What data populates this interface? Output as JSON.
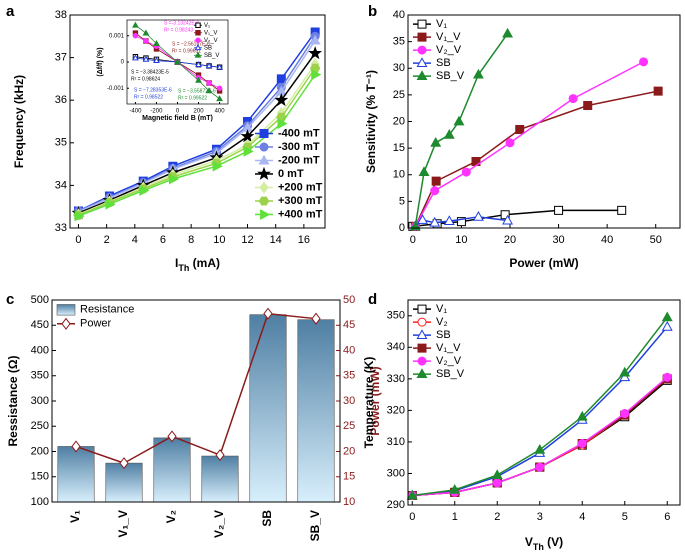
{
  "chart_data": [
    {
      "panel_label": "a",
      "type": "line",
      "x": [
        0,
        2.2,
        4.6,
        6.7,
        9.8,
        12,
        14.4,
        16.8
      ],
      "xlim": [
        -0.6,
        17.5
      ],
      "xticks": [
        0,
        2,
        4,
        6,
        8,
        10,
        12,
        14,
        16
      ],
      "ylim": [
        33,
        38
      ],
      "yticks": [
        33,
        34,
        35,
        36,
        37,
        38
      ],
      "xlabel": [
        {
          "text": "I"
        },
        {
          "text": "Th",
          "sub": true
        },
        {
          "text": " (mA)"
        }
      ],
      "ylabel": "Frequency (kHz)",
      "legend": "lower right",
      "series": [
        {
          "name": "-400 mT",
          "color": "#1f3fe0",
          "marker": "square",
          "values": [
            33.4,
            33.75,
            34.1,
            34.45,
            34.85,
            35.5,
            36.5,
            37.6
          ]
        },
        {
          "name": "-300 mT",
          "color": "#6b80e2",
          "marker": "circle",
          "values": [
            33.4,
            33.72,
            34.07,
            34.4,
            34.8,
            35.4,
            36.3,
            37.5
          ]
        },
        {
          "name": "-200 mT",
          "color": "#aab7f0",
          "marker": "triangle",
          "values": [
            33.38,
            33.7,
            34.05,
            34.38,
            34.75,
            35.35,
            36.2,
            37.4
          ]
        },
        {
          "name": "0 mT",
          "color": "#000000",
          "marker": "star",
          "values": [
            33.35,
            33.65,
            34.0,
            34.3,
            34.65,
            35.15,
            36.0,
            37.1
          ]
        },
        {
          "name": "+200 mT",
          "color": "#d4eea0",
          "marker": "diamond",
          "values": [
            33.32,
            33.62,
            33.95,
            34.25,
            34.58,
            34.95,
            35.7,
            36.85
          ]
        },
        {
          "name": "+300 mT",
          "color": "#9cd24a",
          "marker": "hexagon",
          "values": [
            33.3,
            33.6,
            33.92,
            34.2,
            34.52,
            34.9,
            35.6,
            36.75
          ]
        },
        {
          "name": "+400 mT",
          "color": "#5fe03a",
          "marker": "triangle-right",
          "values": [
            33.28,
            33.56,
            33.88,
            34.15,
            34.45,
            34.8,
            35.45,
            36.6
          ]
        }
      ]
    },
    {
      "type": "line",
      "x": [
        -400,
        -300,
        -200,
        0,
        200,
        300,
        400
      ],
      "xlim": [
        -480,
        480
      ],
      "xticks": [
        -400,
        -200,
        0,
        200,
        400
      ],
      "ylim": [
        -0.0016,
        0.0016
      ],
      "yticks": [
        -0.001,
        0,
        0.001
      ],
      "xlabel": "Magnetic field B (mT)",
      "ylabel": "(Δf/f) (%)",
      "legend": "upper right",
      "series": [
        {
          "name": "V₁",
          "color": "#000000",
          "marker": "square",
          "open": true,
          "values": [
            0.0002,
            0.00015,
            0.0001,
            0,
            -0.0001,
            -0.00015,
            -0.0002
          ]
        },
        {
          "name": "V₁_V",
          "color": "#8b1a1a",
          "marker": "square",
          "values": [
            0.0011,
            0.0008,
            0.0005,
            0,
            -0.0005,
            -0.0008,
            -0.0011
          ]
        },
        {
          "name": "V₂_V",
          "color": "#ff33ff",
          "marker": "circle",
          "values": [
            0.001,
            0.0008,
            0.0006,
            0,
            -0.0006,
            -0.0008,
            -0.001
          ]
        },
        {
          "name": "SB",
          "color": "#1f3fe0",
          "marker": "triangle",
          "open": true,
          "values": [
            0.00015,
            0.0001,
            5e-05,
            0,
            -0.0001,
            -0.00015,
            -0.0002
          ]
        },
        {
          "name": "SB_V",
          "color": "#1e8a2e",
          "marker": "triangle",
          "values": [
            0.0014,
            0.0011,
            0.0007,
            0,
            -0.0007,
            -0.0011,
            -0.0014
          ]
        }
      ],
      "annotations": [
        {
          "text": "S =-3.13242E-6",
          "color": "#ff33ff"
        },
        {
          "text": "R² = 0.98243",
          "color": "#ff33ff"
        },
        {
          "text": "S = −2.56187E-6",
          "color": "#8b1a1a"
        },
        {
          "text": "R² = 0.99631",
          "color": "#8b1a1a"
        },
        {
          "text": "S = −3.38423E-5",
          "color": "#000000"
        },
        {
          "text": "R² = 0.98624",
          "color": "#000000"
        },
        {
          "text": "S = −7.28353E-6",
          "color": "#1f3fe0"
        },
        {
          "text": "R² = 0.98522",
          "color": "#1f3fe0"
        },
        {
          "text": "S = −3.55872E-6",
          "color": "#1e8a2e"
        },
        {
          "text": "R² = 0.99522",
          "color": "#1e8a2e"
        }
      ]
    },
    {
      "panel_label": "b",
      "type": "line",
      "xlim": [
        -1,
        55
      ],
      "xticks": [
        0,
        10,
        20,
        30,
        40,
        50
      ],
      "ylim": [
        0,
        40
      ],
      "yticks": [
        0,
        5,
        10,
        15,
        20,
        25,
        30,
        35,
        40
      ],
      "xlabel": "Power (mW)",
      "ylabel": "Sensitivity (% T⁻¹)",
      "legend": "upper left",
      "series": [
        {
          "name": "V₁",
          "color": "#000000",
          "marker": "square",
          "open": true,
          "x": [
            0,
            5,
            10,
            19,
            30,
            43
          ],
          "values": [
            0.3,
            0.8,
            1.2,
            2.5,
            3.3,
            3.3
          ]
        },
        {
          "name": "V₁_V",
          "color": "#8b1a1a",
          "marker": "square",
          "x": [
            0.5,
            4.8,
            13,
            22,
            36,
            50.5
          ],
          "values": [
            0.3,
            8.8,
            12.5,
            18.5,
            23,
            25.7
          ]
        },
        {
          "name": "V₂_V",
          "color": "#ff33ff",
          "marker": "circle",
          "x": [
            0.5,
            4.5,
            11,
            20,
            33,
            47.5
          ],
          "values": [
            0.3,
            7,
            10.5,
            16,
            24.3,
            31.2
          ]
        },
        {
          "name": "SB",
          "color": "#1f3fe0",
          "marker": "triangle",
          "open": true,
          "x": [
            0.5,
            2,
            4.5,
            7.5,
            13.5,
            19.5
          ],
          "values": [
            0.3,
            1.5,
            1,
            1.3,
            2.1,
            1.4
          ]
        },
        {
          "name": "SB_V",
          "color": "#1e8a2e",
          "marker": "triangle",
          "x": [
            0.5,
            2.3,
            4.7,
            7.5,
            9.5,
            13.5,
            19.5
          ],
          "values": [
            0.3,
            10.5,
            16,
            17.5,
            20,
            28.8,
            36.5
          ]
        }
      ]
    },
    {
      "panel_label": "c",
      "type": "bar",
      "categories": [
        "V₁",
        "V₁_V",
        "V₂",
        "V₂_V",
        "SB",
        "SB_V"
      ],
      "ylim": [
        100,
        500
      ],
      "yticks": [
        100,
        150,
        200,
        250,
        300,
        350,
        400,
        450,
        500
      ],
      "y2lim": [
        10,
        50
      ],
      "y2ticks": [
        10,
        15,
        20,
        25,
        30,
        35,
        40,
        45,
        50
      ],
      "ylabel": "Ressistance (Ω)",
      "y2label": "Power (mW)",
      "legend": "upper left",
      "series": [
        {
          "name": "Resistance",
          "color": "#4f7fa3",
          "values": [
            210,
            177,
            227,
            191,
            471,
            461
          ]
        },
        {
          "name": "Power",
          "color": "#8b1a1a",
          "axis": "y2",
          "marker": "diamond",
          "open": true,
          "values": [
            21,
            17.7,
            23,
            19.3,
            47.3,
            46.3
          ]
        }
      ]
    },
    {
      "panel_label": "d",
      "type": "line",
      "x": [
        0,
        1,
        2,
        3,
        4,
        5,
        6
      ],
      "xlim": [
        -0.1,
        6.3
      ],
      "xticks": [
        0,
        1,
        2,
        3,
        4,
        5,
        6
      ],
      "ylim": [
        290,
        355
      ],
      "yticks": [
        290,
        300,
        310,
        320,
        330,
        340,
        350
      ],
      "xlabel": [
        {
          "text": "V"
        },
        {
          "text": "Th",
          "sub": true
        },
        {
          "text": " (V)"
        }
      ],
      "ylabel": "Temperature (K)",
      "legend": "upper left",
      "series": [
        {
          "name": "V₁",
          "color": "#000000",
          "marker": "square",
          "open": true,
          "values": [
            293,
            294,
            297,
            302,
            309,
            318,
            329.5
          ]
        },
        {
          "name": "V₂",
          "color": "#ff2020",
          "marker": "circle",
          "open": true,
          "values": [
            293,
            294,
            297,
            302,
            309,
            318.5,
            330
          ]
        },
        {
          "name": "SB",
          "color": "#1f3fe0",
          "marker": "triangle",
          "open": true,
          "values": [
            293,
            294.5,
            299,
            306.5,
            317,
            330.5,
            346.5
          ]
        },
        {
          "name": "V₁_V",
          "color": "#8b1a1a",
          "marker": "square",
          "values": [
            293,
            294,
            297,
            302,
            309.5,
            318.5,
            330
          ]
        },
        {
          "name": "V₂_V",
          "color": "#ff33ff",
          "marker": "circle",
          "values": [
            293,
            294,
            297,
            302,
            309.5,
            319,
            330.5
          ]
        },
        {
          "name": "SB_V",
          "color": "#1e8a2e",
          "marker": "triangle",
          "values": [
            293,
            294.8,
            299.5,
            307.5,
            318,
            332,
            349.5
          ]
        }
      ]
    }
  ]
}
